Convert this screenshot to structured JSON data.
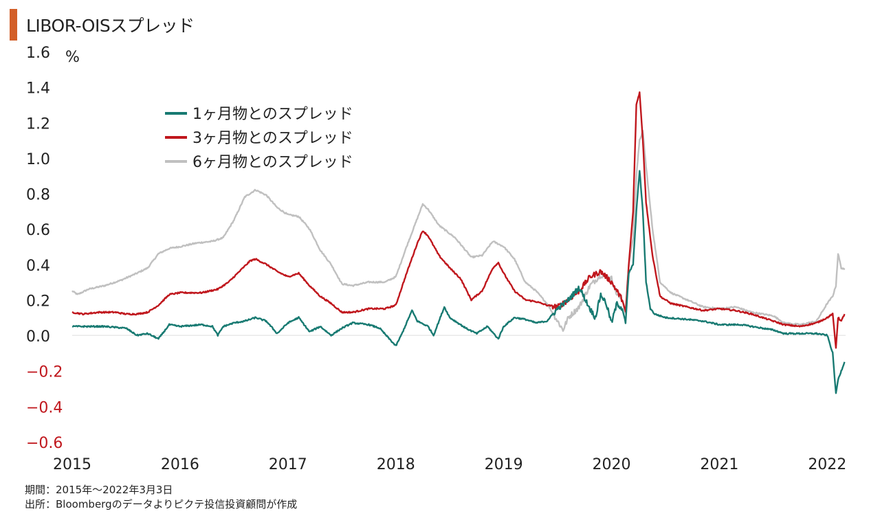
{
  "title": "LIBOR-OISスプレッド",
  "notes": {
    "period": "期間：2015年～2022年3月3日",
    "source": "出所：Bloombergのデータよりピクテ投信投資顧問が作成"
  },
  "colors": {
    "title_accent": "#d35f28",
    "series_1m": "#187a72",
    "series_3m": "#c0171d",
    "series_6m": "#c0c0c0",
    "negative_tick": "#c0171d",
    "zero_line": "#dddddd"
  },
  "chart_data": {
    "type": "line",
    "title": "LIBOR-OISスプレッド",
    "ylabel": "%",
    "xlabel": "",
    "xlim": [
      2015.0,
      2022.17
    ],
    "ylim": [
      -0.6,
      1.6
    ],
    "yticks": [
      "1.6",
      "1.4",
      "1.2",
      "1.0",
      "0.8",
      "0.6",
      "0.4",
      "0.2",
      "0.0",
      "−0.2",
      "−0.4",
      "−0.6"
    ],
    "ytick_values": [
      1.6,
      1.4,
      1.2,
      1.0,
      0.8,
      0.6,
      0.4,
      0.2,
      0.0,
      -0.2,
      -0.4,
      -0.6
    ],
    "xticks": [
      "2015",
      "2016",
      "2017",
      "2018",
      "2019",
      "2020",
      "2021",
      "2022"
    ],
    "xtick_values": [
      2015,
      2016,
      2017,
      2018,
      2019,
      2020,
      2021,
      2022
    ],
    "grid": false,
    "legend_position": "top-left",
    "series": [
      {
        "name": "6ヶ月物とのスプレッド",
        "color": "#c0c0c0",
        "points": [
          [
            2015.0,
            0.25
          ],
          [
            2015.05,
            0.23
          ],
          [
            2015.15,
            0.26
          ],
          [
            2015.3,
            0.28
          ],
          [
            2015.45,
            0.31
          ],
          [
            2015.6,
            0.35
          ],
          [
            2015.7,
            0.38
          ],
          [
            2015.8,
            0.46
          ],
          [
            2015.9,
            0.49
          ],
          [
            2016.0,
            0.5
          ],
          [
            2016.15,
            0.52
          ],
          [
            2016.3,
            0.53
          ],
          [
            2016.4,
            0.55
          ],
          [
            2016.5,
            0.65
          ],
          [
            2016.6,
            0.78
          ],
          [
            2016.7,
            0.82
          ],
          [
            2016.8,
            0.79
          ],
          [
            2016.9,
            0.72
          ],
          [
            2017.0,
            0.68
          ],
          [
            2017.1,
            0.67
          ],
          [
            2017.2,
            0.6
          ],
          [
            2017.3,
            0.48
          ],
          [
            2017.4,
            0.4
          ],
          [
            2017.5,
            0.29
          ],
          [
            2017.6,
            0.28
          ],
          [
            2017.75,
            0.3
          ],
          [
            2017.9,
            0.3
          ],
          [
            2018.0,
            0.33
          ],
          [
            2018.1,
            0.5
          ],
          [
            2018.2,
            0.66
          ],
          [
            2018.25,
            0.74
          ],
          [
            2018.3,
            0.71
          ],
          [
            2018.4,
            0.62
          ],
          [
            2018.55,
            0.55
          ],
          [
            2018.7,
            0.44
          ],
          [
            2018.8,
            0.45
          ],
          [
            2018.9,
            0.53
          ],
          [
            2019.0,
            0.5
          ],
          [
            2019.1,
            0.43
          ],
          [
            2019.2,
            0.3
          ],
          [
            2019.3,
            0.25
          ],
          [
            2019.4,
            0.18
          ],
          [
            2019.5,
            0.08
          ],
          [
            2019.55,
            0.03
          ],
          [
            2019.6,
            0.1
          ],
          [
            2019.7,
            0.16
          ],
          [
            2019.8,
            0.28
          ],
          [
            2019.9,
            0.34
          ],
          [
            2020.0,
            0.32
          ],
          [
            2020.05,
            0.23
          ],
          [
            2020.1,
            0.2
          ],
          [
            2020.13,
            0.12
          ],
          [
            2020.16,
            0.4
          ],
          [
            2020.2,
            0.55
          ],
          [
            2020.23,
            0.9
          ],
          [
            2020.26,
            1.1
          ],
          [
            2020.29,
            1.15
          ],
          [
            2020.32,
            0.95
          ],
          [
            2020.38,
            0.6
          ],
          [
            2020.45,
            0.3
          ],
          [
            2020.55,
            0.24
          ],
          [
            2020.7,
            0.2
          ],
          [
            2020.85,
            0.16
          ],
          [
            2021.0,
            0.15
          ],
          [
            2021.15,
            0.16
          ],
          [
            2021.3,
            0.13
          ],
          [
            2021.5,
            0.11
          ],
          [
            2021.6,
            0.07
          ],
          [
            2021.75,
            0.06
          ],
          [
            2021.9,
            0.08
          ],
          [
            2022.0,
            0.18
          ],
          [
            2022.05,
            0.22
          ],
          [
            2022.08,
            0.28
          ],
          [
            2022.1,
            0.46
          ],
          [
            2022.13,
            0.38
          ],
          [
            2022.16,
            0.37
          ]
        ]
      },
      {
        "name": "3ヶ月物とのスプレッド",
        "color": "#c0171d",
        "points": [
          [
            2015.0,
            0.13
          ],
          [
            2015.1,
            0.12
          ],
          [
            2015.25,
            0.13
          ],
          [
            2015.4,
            0.13
          ],
          [
            2015.5,
            0.12
          ],
          [
            2015.6,
            0.12
          ],
          [
            2015.7,
            0.13
          ],
          [
            2015.8,
            0.17
          ],
          [
            2015.9,
            0.23
          ],
          [
            2016.0,
            0.24
          ],
          [
            2016.2,
            0.24
          ],
          [
            2016.35,
            0.26
          ],
          [
            2016.45,
            0.3
          ],
          [
            2016.55,
            0.36
          ],
          [
            2016.65,
            0.42
          ],
          [
            2016.7,
            0.43
          ],
          [
            2016.8,
            0.4
          ],
          [
            2016.9,
            0.36
          ],
          [
            2017.0,
            0.33
          ],
          [
            2017.1,
            0.35
          ],
          [
            2017.2,
            0.28
          ],
          [
            2017.3,
            0.22
          ],
          [
            2017.4,
            0.18
          ],
          [
            2017.5,
            0.13
          ],
          [
            2017.6,
            0.13
          ],
          [
            2017.75,
            0.15
          ],
          [
            2017.9,
            0.15
          ],
          [
            2018.0,
            0.17
          ],
          [
            2018.1,
            0.35
          ],
          [
            2018.2,
            0.52
          ],
          [
            2018.25,
            0.59
          ],
          [
            2018.3,
            0.56
          ],
          [
            2018.4,
            0.45
          ],
          [
            2018.5,
            0.38
          ],
          [
            2018.6,
            0.32
          ],
          [
            2018.7,
            0.2
          ],
          [
            2018.8,
            0.25
          ],
          [
            2018.9,
            0.38
          ],
          [
            2018.95,
            0.41
          ],
          [
            2019.0,
            0.35
          ],
          [
            2019.1,
            0.25
          ],
          [
            2019.2,
            0.2
          ],
          [
            2019.3,
            0.19
          ],
          [
            2019.4,
            0.17
          ],
          [
            2019.5,
            0.16
          ],
          [
            2019.6,
            0.2
          ],
          [
            2019.7,
            0.25
          ],
          [
            2019.8,
            0.33
          ],
          [
            2019.9,
            0.36
          ],
          [
            2020.0,
            0.3
          ],
          [
            2020.05,
            0.25
          ],
          [
            2020.1,
            0.2
          ],
          [
            2020.13,
            0.13
          ],
          [
            2020.16,
            0.4
          ],
          [
            2020.2,
            0.7
          ],
          [
            2020.23,
            1.3
          ],
          [
            2020.26,
            1.37
          ],
          [
            2020.29,
            1.1
          ],
          [
            2020.32,
            0.75
          ],
          [
            2020.38,
            0.45
          ],
          [
            2020.45,
            0.22
          ],
          [
            2020.55,
            0.18
          ],
          [
            2020.7,
            0.16
          ],
          [
            2020.85,
            0.14
          ],
          [
            2021.0,
            0.15
          ],
          [
            2021.15,
            0.14
          ],
          [
            2021.3,
            0.12
          ],
          [
            2021.5,
            0.08
          ],
          [
            2021.6,
            0.06
          ],
          [
            2021.75,
            0.05
          ],
          [
            2021.9,
            0.07
          ],
          [
            2022.0,
            0.1
          ],
          [
            2022.05,
            0.12
          ],
          [
            2022.08,
            -0.07
          ],
          [
            2022.1,
            0.1
          ],
          [
            2022.13,
            0.08
          ],
          [
            2022.16,
            0.12
          ]
        ]
      },
      {
        "name": "1ヶ月物とのスプレッド",
        "color": "#187a72",
        "points": [
          [
            2015.0,
            0.05
          ],
          [
            2015.1,
            0.05
          ],
          [
            2015.3,
            0.05
          ],
          [
            2015.5,
            0.04
          ],
          [
            2015.6,
            0.0
          ],
          [
            2015.7,
            0.01
          ],
          [
            2015.8,
            -0.02
          ],
          [
            2015.9,
            0.06
          ],
          [
            2016.0,
            0.05
          ],
          [
            2016.2,
            0.06
          ],
          [
            2016.3,
            0.05
          ],
          [
            2016.35,
            0.0
          ],
          [
            2016.4,
            0.05
          ],
          [
            2016.5,
            0.07
          ],
          [
            2016.6,
            0.08
          ],
          [
            2016.7,
            0.1
          ],
          [
            2016.8,
            0.08
          ],
          [
            2016.9,
            0.01
          ],
          [
            2017.0,
            0.07
          ],
          [
            2017.1,
            0.1
          ],
          [
            2017.2,
            0.02
          ],
          [
            2017.3,
            0.05
          ],
          [
            2017.4,
            0.0
          ],
          [
            2017.5,
            0.04
          ],
          [
            2017.6,
            0.07
          ],
          [
            2017.75,
            0.06
          ],
          [
            2017.85,
            0.04
          ],
          [
            2018.0,
            -0.06
          ],
          [
            2018.05,
            0.0
          ],
          [
            2018.15,
            0.14
          ],
          [
            2018.2,
            0.08
          ],
          [
            2018.3,
            0.05
          ],
          [
            2018.35,
            0.0
          ],
          [
            2018.45,
            0.16
          ],
          [
            2018.5,
            0.1
          ],
          [
            2018.55,
            0.08
          ],
          [
            2018.65,
            0.04
          ],
          [
            2018.75,
            0.01
          ],
          [
            2018.85,
            0.05
          ],
          [
            2018.95,
            -0.02
          ],
          [
            2019.0,
            0.05
          ],
          [
            2019.1,
            0.1
          ],
          [
            2019.2,
            0.09
          ],
          [
            2019.3,
            0.07
          ],
          [
            2019.4,
            0.08
          ],
          [
            2019.5,
            0.15
          ],
          [
            2019.6,
            0.2
          ],
          [
            2019.7,
            0.27
          ],
          [
            2019.8,
            0.15
          ],
          [
            2019.85,
            0.1
          ],
          [
            2019.9,
            0.23
          ],
          [
            2019.95,
            0.18
          ],
          [
            2020.0,
            0.07
          ],
          [
            2020.05,
            0.18
          ],
          [
            2020.1,
            0.15
          ],
          [
            2020.13,
            0.07
          ],
          [
            2020.16,
            0.35
          ],
          [
            2020.2,
            0.4
          ],
          [
            2020.23,
            0.7
          ],
          [
            2020.26,
            0.93
          ],
          [
            2020.29,
            0.7
          ],
          [
            2020.32,
            0.3
          ],
          [
            2020.36,
            0.15
          ],
          [
            2020.4,
            0.12
          ],
          [
            2020.5,
            0.1
          ],
          [
            2020.7,
            0.09
          ],
          [
            2020.85,
            0.08
          ],
          [
            2021.0,
            0.06
          ],
          [
            2021.2,
            0.06
          ],
          [
            2021.4,
            0.04
          ],
          [
            2021.5,
            0.03
          ],
          [
            2021.6,
            0.01
          ],
          [
            2021.75,
            0.01
          ],
          [
            2021.9,
            0.01
          ],
          [
            2022.0,
            0.0
          ],
          [
            2022.05,
            -0.1
          ],
          [
            2022.08,
            -0.33
          ],
          [
            2022.1,
            -0.25
          ],
          [
            2022.13,
            -0.2
          ],
          [
            2022.16,
            -0.15
          ]
        ]
      }
    ]
  }
}
